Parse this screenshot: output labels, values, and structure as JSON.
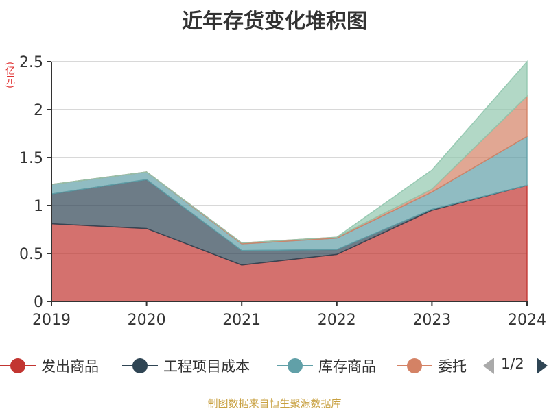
{
  "title": "近年存货变化堆积图",
  "unit_label": "(亿元)",
  "source": "制图数据来自恒生聚源数据库",
  "legend_page": "1/2",
  "chart_data": {
    "type": "area",
    "stacked": true,
    "x": [
      "2019",
      "2020",
      "2021",
      "2022",
      "2023",
      "2024"
    ],
    "ylim": [
      0,
      2.5
    ],
    "yticks": [
      "0",
      "0.5",
      "1",
      "1.5",
      "2",
      "2.5"
    ],
    "grid": true,
    "legend_position": "bottom",
    "series": [
      {
        "name": "发出商品",
        "color": "#c23531",
        "values": [
          0.81,
          0.76,
          0.38,
          0.49,
          0.95,
          1.21
        ]
      },
      {
        "name": "工程项目成本",
        "color": "#2f4554",
        "values": [
          0.31,
          0.51,
          0.15,
          0.05,
          0.01,
          0.0
        ]
      },
      {
        "name": "库存商品",
        "color": "#61a0a8",
        "values": [
          0.1,
          0.08,
          0.07,
          0.12,
          0.18,
          0.51
        ]
      },
      {
        "name": "委托加工物资",
        "color": "#d48265",
        "values": [
          0.0,
          0.0,
          0.01,
          0.01,
          0.03,
          0.42
        ]
      },
      {
        "name": "",
        "color": "#91c7ae",
        "values": [
          0.0,
          0.0,
          0.0,
          0.0,
          0.2,
          0.36
        ]
      }
    ],
    "legend_visible": [
      "发出商品",
      "工程项目成本",
      "库存商品",
      "委托"
    ]
  }
}
